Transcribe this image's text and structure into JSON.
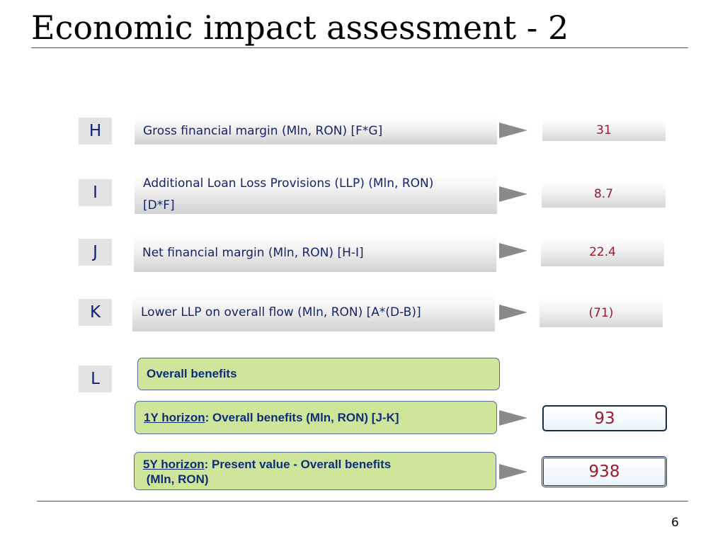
{
  "title": "Economic impact assessment - 2",
  "page_number": "6",
  "rows": [
    {
      "letter": "H",
      "label": "Gross financial margin (Mln, RON)  [F*G]",
      "value": "31"
    },
    {
      "letter": "I",
      "label_line1": "Additional Loan Loss Provisions (LLP) (Mln, RON)",
      "label_line2": "[D*F]",
      "value": "8.7"
    },
    {
      "letter": "J",
      "label": "Net financial margin (Mln, RON) [H-I]",
      "value": "22.4"
    },
    {
      "letter": "K",
      "label": "Lower LLP on overall flow (Mln, RON)  [A*(D-B)]",
      "value": "(71)"
    }
  ],
  "overall": {
    "letter": "L",
    "heading": "Overall benefits",
    "one_year": {
      "horizon": "1Y  horizon",
      "text": ": Overall benefits (Mln, RON) [J-K]",
      "value": "93"
    },
    "five_year": {
      "horizon": "5Y horizon",
      "text": ": Present value - Overall benefits",
      "text_line2": " (Mln, RON)",
      "value": "938"
    }
  },
  "colors": {
    "label_text": "#16246e",
    "value_text": "#9a1b2e",
    "green_fill": "#cfe59a",
    "letter_text": "#0d1f7a"
  }
}
